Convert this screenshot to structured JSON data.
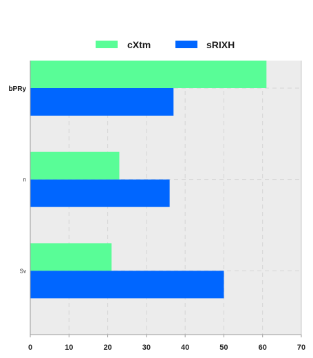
{
  "chart_data": {
    "type": "bar",
    "orientation": "horizontal",
    "categories": [
      "bPRy",
      "n",
      "Sv"
    ],
    "series": [
      {
        "name": "cXtm",
        "values": [
          61,
          23,
          21
        ],
        "color": "#59fd97"
      },
      {
        "name": "sRIXH",
        "values": [
          37,
          36,
          50
        ],
        "color": "#0066ff"
      }
    ],
    "xlim": [
      0,
      70
    ],
    "xticks": [
      "0",
      "10",
      "20",
      "30",
      "40",
      "50",
      "60",
      "70"
    ],
    "title": "",
    "xlabel": "",
    "ylabel": "",
    "grid": true,
    "legend_position": "top-center",
    "plot_background": "#ececec"
  }
}
